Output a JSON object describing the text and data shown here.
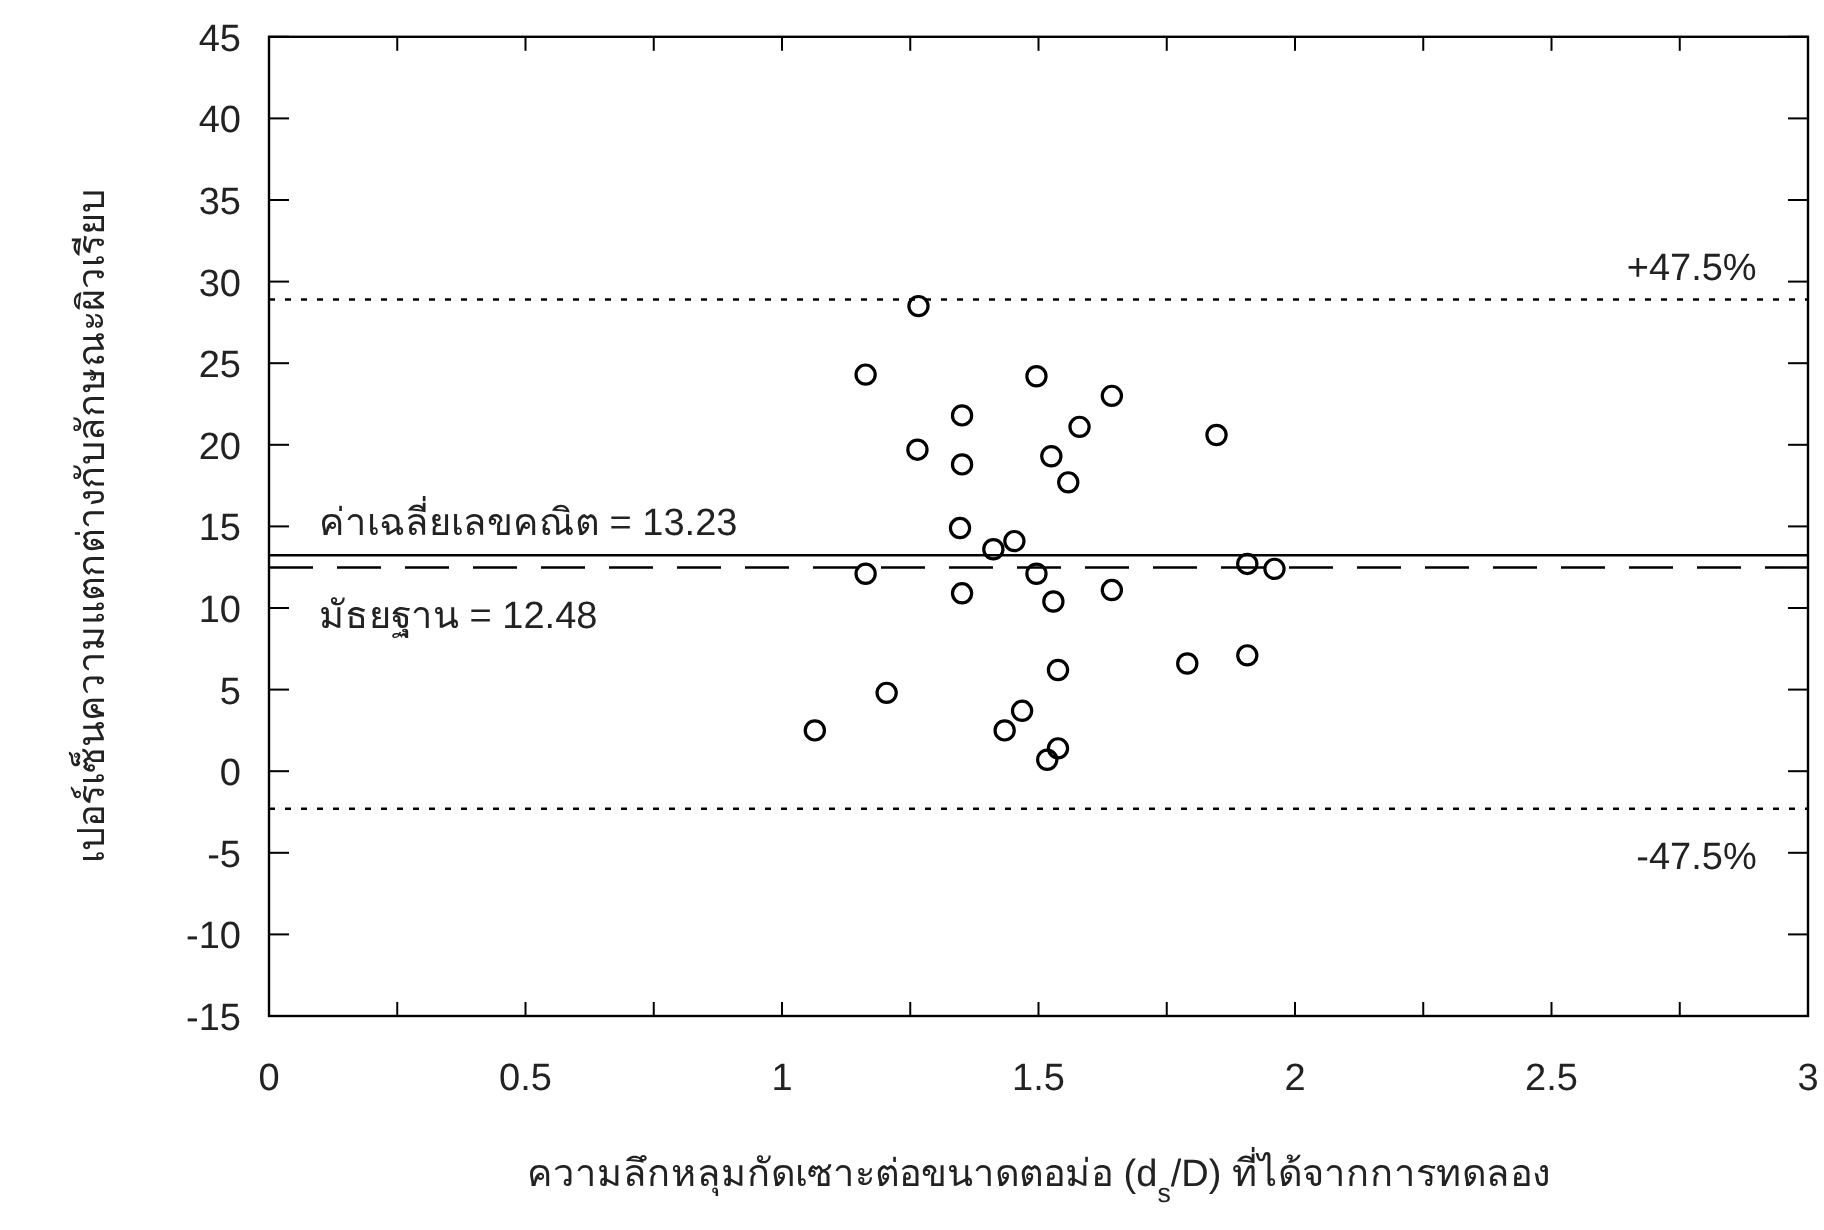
{
  "chart_data": {
    "type": "scatter",
    "xlabel": "ความลึกหลุมกัดเซาะต่อขนาดตอม่อ (d$_{s}$/D) ที่ได้จากการทดลอง",
    "ylabel": "เปอร์เซ็นความแตกต่างกับลักษณะผิวเรียบ",
    "x": [
      1.266,
      1.163,
      1.496,
      1.643,
      1.351,
      1.58,
      1.847,
      1.264,
      1.525,
      1.351,
      1.558,
      1.347,
      1.453,
      1.412,
      1.907,
      1.96,
      1.163,
      1.496,
      1.351,
      1.643,
      1.529,
      1.538,
      1.79,
      1.907,
      1.204,
      1.468,
      1.064,
      1.434,
      1.538,
      1.517
    ],
    "values": [
      28.5,
      24.3,
      24.2,
      23.0,
      21.8,
      21.1,
      20.6,
      19.7,
      19.3,
      18.8,
      17.7,
      14.9,
      14.1,
      13.6,
      12.7,
      12.4,
      12.1,
      12.1,
      10.9,
      11.1,
      10.4,
      6.2,
      6.6,
      7.1,
      4.8,
      3.7,
      2.5,
      2.5,
      1.4,
      0.7
    ],
    "color": "#000000",
    "marker": "circle",
    "grid": false,
    "xlim": [
      0,
      3
    ],
    "ylim": [
      -15,
      45
    ],
    "xticks": [
      0,
      {
        "value": 0.25,
        "label": null
      },
      0.5,
      {
        "value": 0.75,
        "label": null
      },
      1,
      {
        "value": 1.25,
        "label": null
      },
      1.5,
      {
        "value": 1.75,
        "label": null
      },
      2,
      {
        "value": 2.25,
        "label": null
      },
      2.5,
      {
        "value": 2.75,
        "label": null
      },
      3
    ],
    "yticks": [
      -15,
      -10,
      -5,
      0,
      5,
      10,
      15,
      20,
      25,
      30,
      35,
      40,
      45
    ],
    "ref_lines": [
      {
        "axis": "y",
        "value": 13.23,
        "label": "ค่าเฉลี่ยเลขคณิต = 13.23",
        "line_style": "solid",
        "color": "#000000"
      },
      {
        "axis": "y",
        "value": 12.48,
        "label": "มัธยฐาน = 12.48",
        "line_style": "dashed",
        "color": "#000000"
      },
      {
        "axis": "y",
        "value": 28.9,
        "line_style": "dotted",
        "color": "#000000"
      },
      {
        "axis": "y",
        "value": -2.3,
        "line_style": "dotted",
        "color": "#000000"
      }
    ],
    "annotations": [
      {
        "text": "+47.5%",
        "x": 2.9,
        "y": 28.9
      },
      {
        "text": "-47.5%",
        "x": 2.9,
        "y": -2.3
      }
    ]
  }
}
